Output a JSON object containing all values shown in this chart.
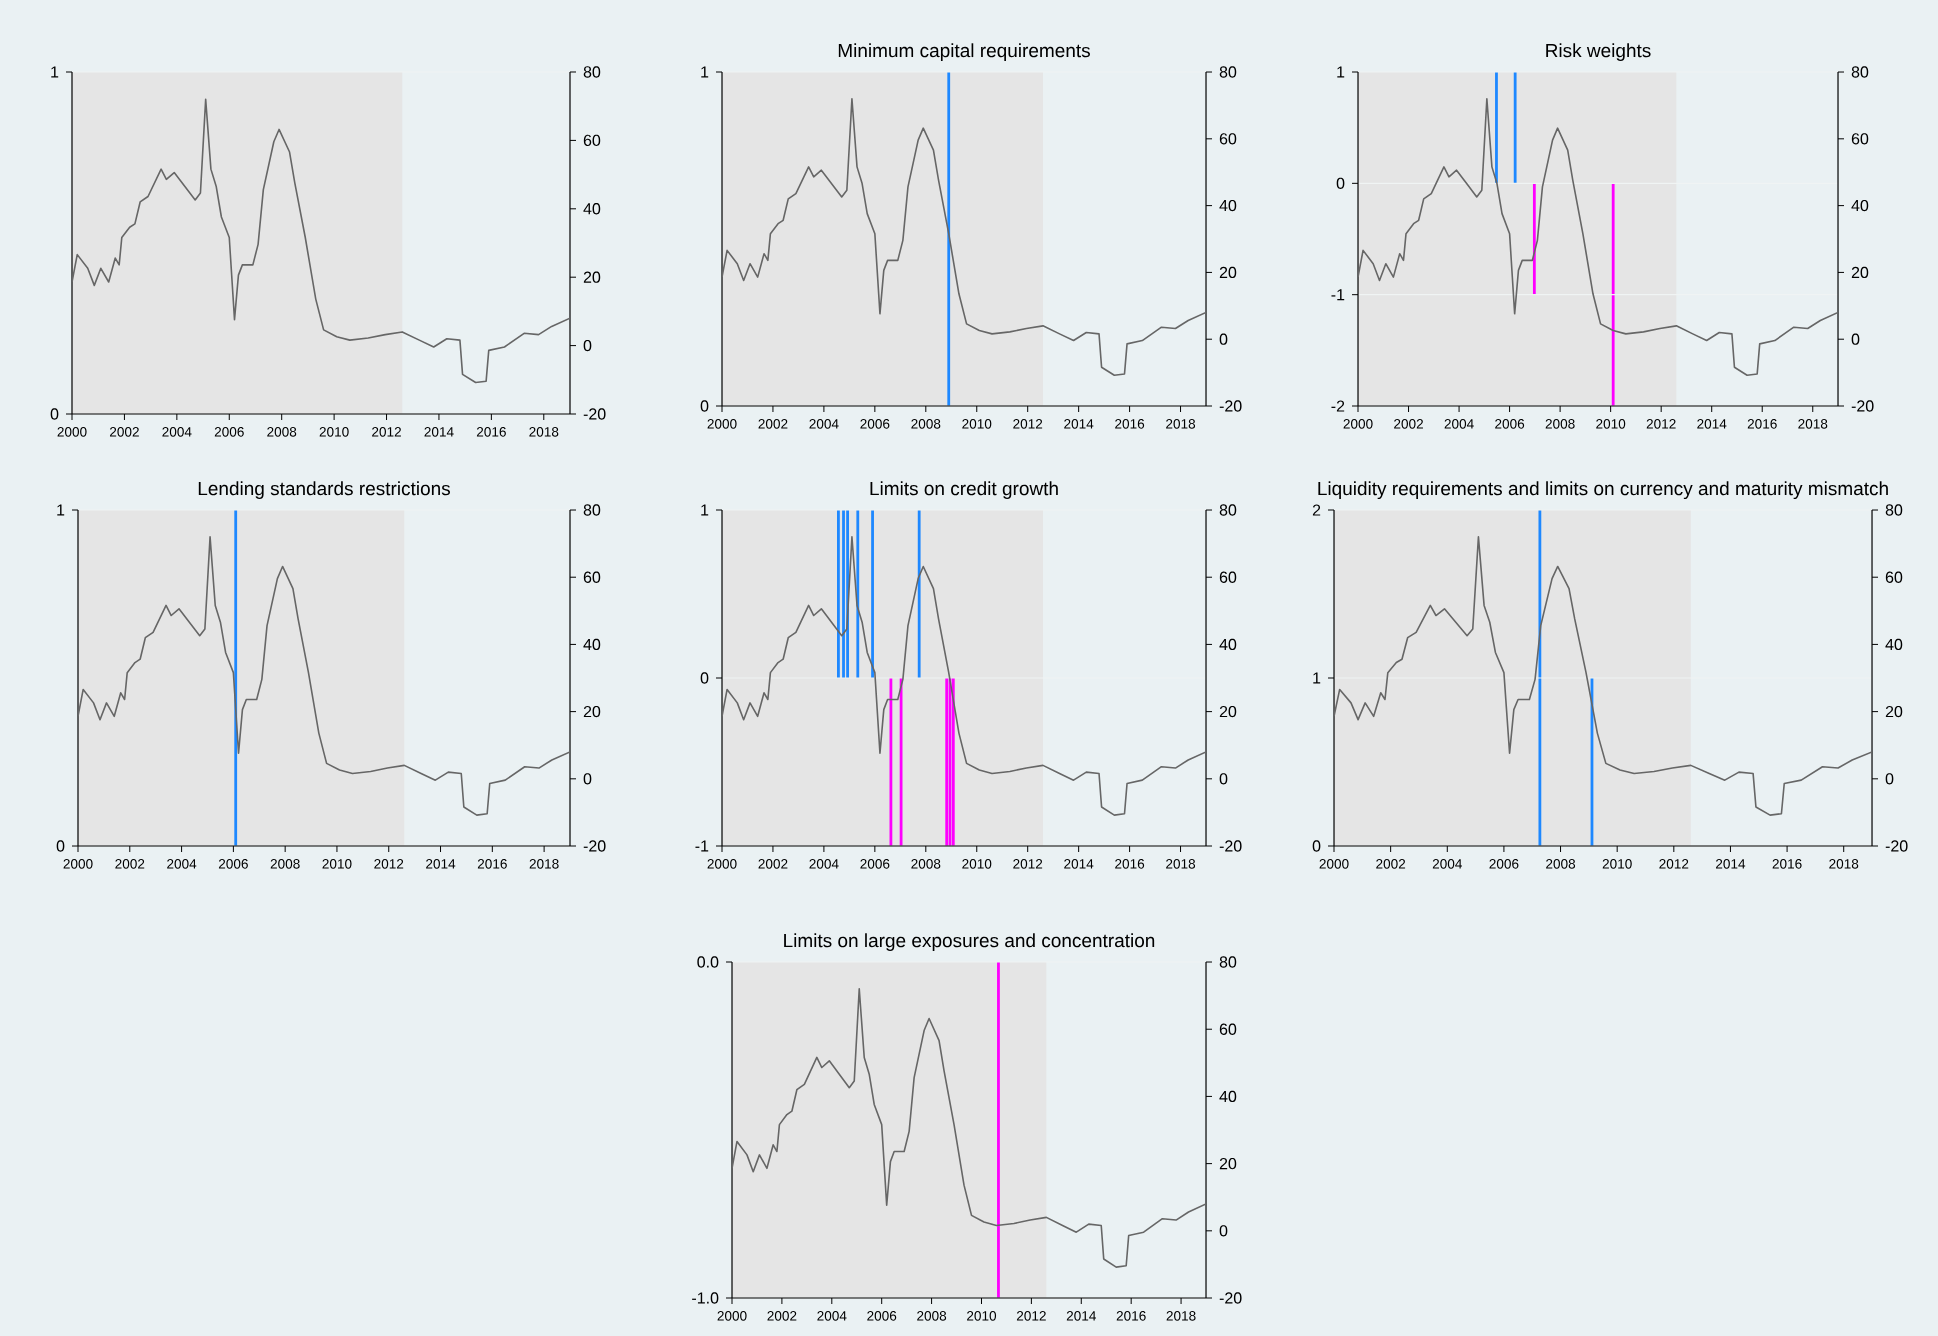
{
  "chart_data": [
    {
      "type": "line",
      "xlim": [
        2000,
        2019
      ],
      "xticks": [
        2000,
        2002,
        2004,
        2006,
        2008,
        2010,
        2012,
        2014,
        2016,
        2018
      ],
      "ylim": [
        0,
        1
      ],
      "yticks": [
        0,
        1
      ],
      "y2lim": [
        -20,
        80
      ],
      "y2ticks": [
        -20,
        0,
        20,
        40,
        60,
        80
      ],
      "grid": "y",
      "bands": [
        {
          "axis": "x",
          "from": 2000,
          "to": 2012.6,
          "color": "#e5e5e5"
        }
      ],
      "series": [
        {
          "axis": "y2",
          "color": "#666666",
          "x": [
            2000.0,
            2000.2,
            2000.6,
            2000.85,
            2001.1,
            2001.4,
            2001.65,
            2001.8,
            2001.9,
            2002.2,
            2002.4,
            2002.6,
            2002.9,
            2003.4,
            2003.6,
            2003.9,
            2004.3,
            2004.7,
            2004.9,
            2005.1,
            2005.3,
            2005.5,
            2005.7,
            2006.0,
            2006.2,
            2006.35,
            2006.5,
            2006.9,
            2007.1,
            2007.3,
            2007.7,
            2007.9,
            2008.3,
            2008.5,
            2008.9,
            2009.3,
            2009.6,
            2010.1,
            2010.6,
            2011.3,
            2011.95,
            2012.6,
            2013.25,
            2013.8,
            2014.3,
            2014.8,
            2014.9,
            2015.4,
            2015.8,
            2015.9,
            2016.5,
            2017.25,
            2017.8,
            2018.3,
            2019.0
          ],
          "values": [
            18.6,
            26.6,
            22.6,
            17.6,
            22.6,
            18.6,
            25.6,
            23.6,
            31.6,
            34.6,
            35.6,
            42,
            43.6,
            51.6,
            48.6,
            50.6,
            46.6,
            42.6,
            44.6,
            72,
            51.6,
            46.6,
            37.6,
            31.6,
            7.6,
            20.6,
            23.6,
            23.6,
            29.6,
            45.6,
            59.6,
            63.2,
            56.6,
            47.6,
            31.6,
            13.6,
            4.6,
            2.6,
            1.6,
            2.2,
            3.2,
            4.0,
            1.6,
            -0.4,
            2,
            1.6,
            -8.4,
            -10.8,
            -10.4,
            -1.4,
            -0.4,
            3.6,
            3.2,
            5.6,
            8
          ]
        }
      ]
    },
    {
      "type": "bar",
      "title": "Minimum capital requirements",
      "xlim": [
        2000,
        2019
      ],
      "xticks": [
        2000,
        2002,
        2004,
        2006,
        2008,
        2010,
        2012,
        2014,
        2016,
        2018
      ],
      "ylim": [
        0,
        1
      ],
      "yticks": [
        0,
        1
      ],
      "y2lim": [
        -20,
        80
      ],
      "y2ticks": [
        -20,
        0,
        20,
        40,
        60,
        80
      ],
      "grid": "y",
      "bands": [
        {
          "axis": "x",
          "from": 2000,
          "to": 2012.6,
          "color": "#e5e5e5"
        }
      ],
      "series": [
        {
          "color": "#1e88ff",
          "x": [
            2008.9
          ],
          "values": [
            1
          ]
        },
        {
          "type": "line",
          "axis": "y2",
          "color": "#666666",
          "x": [
            2000.0,
            2000.2,
            2000.6,
            2000.85,
            2001.1,
            2001.4,
            2001.65,
            2001.8,
            2001.9,
            2002.2,
            2002.4,
            2002.6,
            2002.9,
            2003.4,
            2003.6,
            2003.9,
            2004.3,
            2004.7,
            2004.9,
            2005.1,
            2005.3,
            2005.5,
            2005.7,
            2006.0,
            2006.2,
            2006.35,
            2006.5,
            2006.9,
            2007.1,
            2007.3,
            2007.7,
            2007.9,
            2008.3,
            2008.5,
            2008.9,
            2009.3,
            2009.6,
            2010.1,
            2010.6,
            2011.3,
            2011.95,
            2012.6,
            2013.25,
            2013.8,
            2014.3,
            2014.8,
            2014.9,
            2015.4,
            2015.8,
            2015.9,
            2016.5,
            2017.25,
            2017.8,
            2018.3,
            2019.0
          ],
          "values": [
            18.6,
            26.6,
            22.6,
            17.6,
            22.6,
            18.6,
            25.6,
            23.6,
            31.6,
            34.6,
            35.6,
            42,
            43.6,
            51.6,
            48.6,
            50.6,
            46.6,
            42.6,
            44.6,
            72,
            51.6,
            46.6,
            37.6,
            31.6,
            7.6,
            20.6,
            23.6,
            23.6,
            29.6,
            45.6,
            59.6,
            63.2,
            56.6,
            47.6,
            31.6,
            13.6,
            4.6,
            2.6,
            1.6,
            2.2,
            3.2,
            4.0,
            1.6,
            -0.4,
            2,
            1.6,
            -8.4,
            -10.8,
            -10.4,
            -1.4,
            -0.4,
            3.6,
            3.2,
            5.6,
            8
          ]
        }
      ]
    },
    {
      "type": "bar",
      "title": "Risk weights",
      "xlim": [
        2000,
        2019
      ],
      "xticks": [
        2000,
        2002,
        2004,
        2006,
        2008,
        2010,
        2012,
        2014,
        2016,
        2018
      ],
      "ylim": [
        -2,
        1
      ],
      "yticks": [
        -2,
        -1,
        0,
        1
      ],
      "y2lim": [
        -20,
        80
      ],
      "y2ticks": [
        -20,
        0,
        20,
        40,
        60,
        80
      ],
      "grid": "y",
      "bands": [
        {
          "axis": "x",
          "from": 2000,
          "to": 2012.6,
          "color": "#e5e5e5"
        }
      ],
      "series": [
        {
          "color": "#1e88ff",
          "x": [
            2005.48,
            2006.22
          ],
          "values": [
            1,
            1
          ]
        },
        {
          "color": "#ff00ff",
          "x": [
            2006.98,
            2010.1
          ],
          "values": [
            -1,
            -2
          ]
        },
        {
          "type": "line",
          "axis": "y2",
          "color": "#666666",
          "x": [
            2000.0,
            2000.2,
            2000.6,
            2000.85,
            2001.1,
            2001.4,
            2001.65,
            2001.8,
            2001.9,
            2002.2,
            2002.4,
            2002.6,
            2002.9,
            2003.4,
            2003.6,
            2003.9,
            2004.3,
            2004.7,
            2004.9,
            2005.1,
            2005.3,
            2005.5,
            2005.7,
            2006.0,
            2006.2,
            2006.35,
            2006.5,
            2006.9,
            2007.1,
            2007.3,
            2007.7,
            2007.9,
            2008.3,
            2008.5,
            2008.9,
            2009.3,
            2009.6,
            2010.1,
            2010.6,
            2011.3,
            2011.95,
            2012.6,
            2013.25,
            2013.8,
            2014.3,
            2014.8,
            2014.9,
            2015.4,
            2015.8,
            2015.9,
            2016.5,
            2017.25,
            2017.8,
            2018.3,
            2019.0
          ],
          "values": [
            18.6,
            26.6,
            22.6,
            17.6,
            22.6,
            18.6,
            25.6,
            23.6,
            31.6,
            34.6,
            35.6,
            42,
            43.6,
            51.6,
            48.6,
            50.6,
            46.6,
            42.6,
            44.6,
            72,
            51.6,
            46.6,
            37.6,
            31.6,
            7.6,
            20.6,
            23.6,
            23.6,
            29.6,
            45.6,
            59.6,
            63.2,
            56.6,
            47.6,
            31.6,
            13.6,
            4.6,
            2.6,
            1.6,
            2.2,
            3.2,
            4.0,
            1.6,
            -0.4,
            2,
            1.6,
            -8.4,
            -10.8,
            -10.4,
            -1.4,
            -0.4,
            3.6,
            3.2,
            5.6,
            8
          ]
        }
      ]
    },
    {
      "type": "bar",
      "title": "Lending standards restrictions",
      "xlim": [
        2000,
        2019
      ],
      "xticks": [
        2000,
        2002,
        2004,
        2006,
        2008,
        2010,
        2012,
        2014,
        2016,
        2018
      ],
      "ylim": [
        0,
        1
      ],
      "yticks": [
        0,
        1
      ],
      "y2lim": [
        -20,
        80
      ],
      "y2ticks": [
        -20,
        0,
        20,
        40,
        60,
        80
      ],
      "grid": "y",
      "bands": [
        {
          "axis": "x",
          "from": 2000,
          "to": 2012.6,
          "color": "#e5e5e5"
        }
      ],
      "series": [
        {
          "color": "#1e88ff",
          "x": [
            2006.09
          ],
          "values": [
            1
          ]
        },
        {
          "type": "line",
          "axis": "y2",
          "color": "#666666",
          "x": [
            2000.0,
            2000.2,
            2000.6,
            2000.85,
            2001.1,
            2001.4,
            2001.65,
            2001.8,
            2001.9,
            2002.2,
            2002.4,
            2002.6,
            2002.9,
            2003.4,
            2003.6,
            2003.9,
            2004.3,
            2004.7,
            2004.9,
            2005.1,
            2005.3,
            2005.5,
            2005.7,
            2006.0,
            2006.2,
            2006.35,
            2006.5,
            2006.9,
            2007.1,
            2007.3,
            2007.7,
            2007.9,
            2008.3,
            2008.5,
            2008.9,
            2009.3,
            2009.6,
            2010.1,
            2010.6,
            2011.3,
            2011.95,
            2012.6,
            2013.25,
            2013.8,
            2014.3,
            2014.8,
            2014.9,
            2015.4,
            2015.8,
            2015.9,
            2016.5,
            2017.25,
            2017.8,
            2018.3,
            2019.0
          ],
          "values": [
            18.6,
            26.6,
            22.6,
            17.6,
            22.6,
            18.6,
            25.6,
            23.6,
            31.6,
            34.6,
            35.6,
            42,
            43.6,
            51.6,
            48.6,
            50.6,
            46.6,
            42.6,
            44.6,
            72,
            51.6,
            46.6,
            37.6,
            31.6,
            7.6,
            20.6,
            23.6,
            23.6,
            29.6,
            45.6,
            59.6,
            63.2,
            56.6,
            47.6,
            31.6,
            13.6,
            4.6,
            2.6,
            1.6,
            2.2,
            3.2,
            4.0,
            1.6,
            -0.4,
            2,
            1.6,
            -8.4,
            -10.8,
            -10.4,
            -1.4,
            -0.4,
            3.6,
            3.2,
            5.6,
            8
          ]
        }
      ]
    },
    {
      "type": "bar",
      "title": "Limits on credit growth",
      "xlim": [
        2000,
        2019
      ],
      "xticks": [
        2000,
        2002,
        2004,
        2006,
        2008,
        2010,
        2012,
        2014,
        2016,
        2018
      ],
      "ylim": [
        -1,
        1
      ],
      "yticks": [
        -1,
        0,
        1
      ],
      "y2lim": [
        -20,
        80
      ],
      "y2ticks": [
        -20,
        0,
        20,
        40,
        60,
        80
      ],
      "grid": "y",
      "bands": [
        {
          "axis": "x",
          "from": 2000,
          "to": 2012.6,
          "color": "#e5e5e5"
        }
      ],
      "series": [
        {
          "color": "#1e88ff",
          "x": [
            2004.57,
            2004.77,
            2004.93,
            2005.33,
            2005.91,
            2007.74
          ],
          "values": [
            1,
            1,
            1,
            1,
            1,
            1
          ]
        },
        {
          "color": "#ff00ff",
          "x": [
            2006.63,
            2007.03,
            2008.82,
            2008.95,
            2009.08
          ],
          "values": [
            -1,
            -1,
            -1,
            -1,
            -1
          ]
        },
        {
          "type": "line",
          "axis": "y2",
          "color": "#666666",
          "x": [
            2000.0,
            2000.2,
            2000.6,
            2000.85,
            2001.1,
            2001.4,
            2001.65,
            2001.8,
            2001.9,
            2002.2,
            2002.4,
            2002.6,
            2002.9,
            2003.4,
            2003.6,
            2003.9,
            2004.3,
            2004.7,
            2004.9,
            2005.1,
            2005.3,
            2005.5,
            2005.7,
            2006.0,
            2006.2,
            2006.35,
            2006.5,
            2006.9,
            2007.1,
            2007.3,
            2007.7,
            2007.9,
            2008.3,
            2008.5,
            2008.9,
            2009.3,
            2009.6,
            2010.1,
            2010.6,
            2011.3,
            2011.95,
            2012.6,
            2013.25,
            2013.8,
            2014.3,
            2014.8,
            2014.9,
            2015.4,
            2015.8,
            2015.9,
            2016.5,
            2017.25,
            2017.8,
            2018.3,
            2019.0
          ],
          "values": [
            18.6,
            26.6,
            22.6,
            17.6,
            22.6,
            18.6,
            25.6,
            23.6,
            31.6,
            34.6,
            35.6,
            42,
            43.6,
            51.6,
            48.6,
            50.6,
            46.6,
            42.6,
            44.6,
            72,
            51.6,
            46.6,
            37.6,
            31.6,
            7.6,
            20.6,
            23.6,
            23.6,
            29.6,
            45.6,
            59.6,
            63.2,
            56.6,
            47.6,
            31.6,
            13.6,
            4.6,
            2.6,
            1.6,
            2.2,
            3.2,
            4.0,
            1.6,
            -0.4,
            2,
            1.6,
            -8.4,
            -10.8,
            -10.4,
            -1.4,
            -0.4,
            3.6,
            3.2,
            5.6,
            8
          ]
        }
      ]
    },
    {
      "type": "bar",
      "title": "Liquidity requirements and limits on currency and maturity mismatch",
      "xlim": [
        2000,
        2019
      ],
      "xticks": [
        2000,
        2002,
        2004,
        2006,
        2008,
        2010,
        2012,
        2014,
        2016,
        2018
      ],
      "ylim": [
        0,
        2
      ],
      "yticks": [
        0,
        1,
        2
      ],
      "y2lim": [
        -20,
        80
      ],
      "y2ticks": [
        -20,
        0,
        20,
        40,
        60,
        80
      ],
      "grid": "y",
      "bands": [
        {
          "axis": "x",
          "from": 2000,
          "to": 2012.6,
          "color": "#e5e5e5"
        }
      ],
      "series": [
        {
          "color": "#1e88ff",
          "x": [
            2007.27,
            2009.11
          ],
          "values": [
            2,
            1
          ]
        },
        {
          "type": "line",
          "axis": "y2",
          "color": "#666666",
          "x": [
            2000.0,
            2000.2,
            2000.6,
            2000.85,
            2001.1,
            2001.4,
            2001.65,
            2001.8,
            2001.9,
            2002.2,
            2002.4,
            2002.6,
            2002.9,
            2003.4,
            2003.6,
            2003.9,
            2004.3,
            2004.7,
            2004.9,
            2005.1,
            2005.3,
            2005.5,
            2005.7,
            2006.0,
            2006.2,
            2006.35,
            2006.5,
            2006.9,
            2007.1,
            2007.3,
            2007.7,
            2007.9,
            2008.3,
            2008.5,
            2008.9,
            2009.3,
            2009.6,
            2010.1,
            2010.6,
            2011.3,
            2011.95,
            2012.6,
            2013.25,
            2013.8,
            2014.3,
            2014.8,
            2014.9,
            2015.4,
            2015.8,
            2015.9,
            2016.5,
            2017.25,
            2017.8,
            2018.3,
            2019.0
          ],
          "values": [
            18.6,
            26.6,
            22.6,
            17.6,
            22.6,
            18.6,
            25.6,
            23.6,
            31.6,
            34.6,
            35.6,
            42,
            43.6,
            51.6,
            48.6,
            50.6,
            46.6,
            42.6,
            44.6,
            72,
            51.6,
            46.6,
            37.6,
            31.6,
            7.6,
            20.6,
            23.6,
            23.6,
            29.6,
            45.6,
            59.6,
            63.2,
            56.6,
            47.6,
            31.6,
            13.6,
            4.6,
            2.6,
            1.6,
            2.2,
            3.2,
            4.0,
            1.6,
            -0.4,
            2,
            1.6,
            -8.4,
            -10.8,
            -10.4,
            -1.4,
            -0.4,
            3.6,
            3.2,
            5.6,
            8
          ]
        }
      ]
    },
    {
      "type": "bar",
      "title": "Limits on large exposures and concentration",
      "xlim": [
        2000,
        2019
      ],
      "xticks": [
        2000,
        2002,
        2004,
        2006,
        2008,
        2010,
        2012,
        2014,
        2016,
        2018
      ],
      "ylim": [
        -1,
        0
      ],
      "yticks": [
        {
          "value": -1,
          "label": "-1.0"
        },
        {
          "value": 0,
          "label": "0.0"
        }
      ],
      "y2lim": [
        -20,
        80
      ],
      "y2ticks": [
        -20,
        0,
        20,
        40,
        60,
        80
      ],
      "grid": "y",
      "bands": [
        {
          "axis": "x",
          "from": 2000,
          "to": 2012.6,
          "color": "#e5e5e5"
        }
      ],
      "series": [
        {
          "color": "#ff00ff",
          "x": [
            2010.68
          ],
          "values": [
            -1
          ]
        },
        {
          "type": "line",
          "axis": "y2",
          "color": "#666666",
          "x": [
            2000.0,
            2000.2,
            2000.6,
            2000.85,
            2001.1,
            2001.4,
            2001.65,
            2001.8,
            2001.9,
            2002.2,
            2002.4,
            2002.6,
            2002.9,
            2003.4,
            2003.6,
            2003.9,
            2004.3,
            2004.7,
            2004.9,
            2005.1,
            2005.3,
            2005.5,
            2005.7,
            2006.0,
            2006.2,
            2006.35,
            2006.5,
            2006.9,
            2007.1,
            2007.3,
            2007.7,
            2007.9,
            2008.3,
            2008.5,
            2008.9,
            2009.3,
            2009.6,
            2010.1,
            2010.6,
            2011.3,
            2011.95,
            2012.6,
            2013.25,
            2013.8,
            2014.3,
            2014.8,
            2014.9,
            2015.4,
            2015.8,
            2015.9,
            2016.5,
            2017.25,
            2017.8,
            2018.3,
            2019.0
          ],
          "values": [
            18.6,
            26.6,
            22.6,
            17.6,
            22.6,
            18.6,
            25.6,
            23.6,
            31.6,
            34.6,
            35.6,
            42,
            43.6,
            51.6,
            48.6,
            50.6,
            46.6,
            42.6,
            44.6,
            72,
            51.6,
            46.6,
            37.6,
            31.6,
            7.6,
            20.6,
            23.6,
            23.6,
            29.6,
            45.6,
            59.6,
            63.2,
            56.6,
            47.6,
            31.6,
            13.6,
            4.6,
            2.6,
            1.6,
            2.2,
            3.2,
            4.0,
            1.6,
            -0.4,
            2,
            1.6,
            -8.4,
            -10.8,
            -10.4,
            -1.4,
            -0.4,
            3.6,
            3.2,
            5.6,
            8
          ]
        }
      ]
    }
  ]
}
